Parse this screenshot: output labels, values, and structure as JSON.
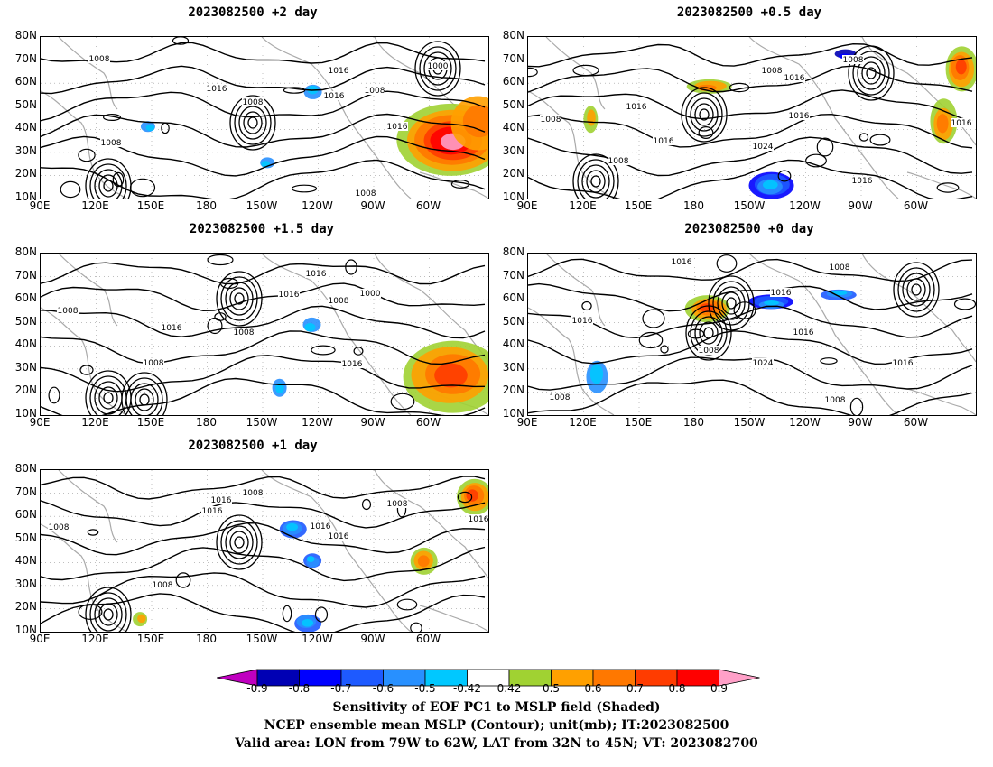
{
  "panels": [
    {
      "id": "p2",
      "title": "2023082500 +2 day"
    },
    {
      "id": "p05",
      "title": "2023082500 +0.5 day"
    },
    {
      "id": "p15",
      "title": "2023082500 +1.5 day"
    },
    {
      "id": "p0",
      "title": "2023082500 +0 day"
    },
    {
      "id": "p1",
      "title": "2023082500 +1 day"
    }
  ],
  "lat_ticks": [
    "80N",
    "70N",
    "60N",
    "50N",
    "40N",
    "30N",
    "20N",
    "10N"
  ],
  "lon_ticks": [
    "90E",
    "120E",
    "150E",
    "180",
    "150W",
    "120W",
    "90W",
    "60W"
  ],
  "contour_labels": [
    "1008",
    "1016",
    "1000",
    "1024"
  ],
  "colorbar": {
    "labels": [
      "-0.9",
      "-0.8",
      "-0.7",
      "-0.6",
      "-0.5",
      "-0.42",
      "0.42",
      "0.5",
      "0.6",
      "0.7",
      "0.8",
      "0.9"
    ],
    "colors": [
      "#c000c0",
      "#0000b4",
      "#0000ff",
      "#1e5aff",
      "#2890ff",
      "#00c8ff",
      "#ffffff",
      "#a0d232",
      "#ffa000",
      "#ff7800",
      "#ff3c00",
      "#ff0000",
      "#ffa0c8"
    ]
  },
  "caption": {
    "line1": "Sensitivity of EOF PC1 to MSLP field (Shaded)",
    "line2": "NCEP ensemble mean MSLP (Contour); unit(mb); IT:2023082500",
    "line3": "Valid area: LON from 79W to 62W, LAT from 32N to 45N; VT: 2023082700"
  }
}
